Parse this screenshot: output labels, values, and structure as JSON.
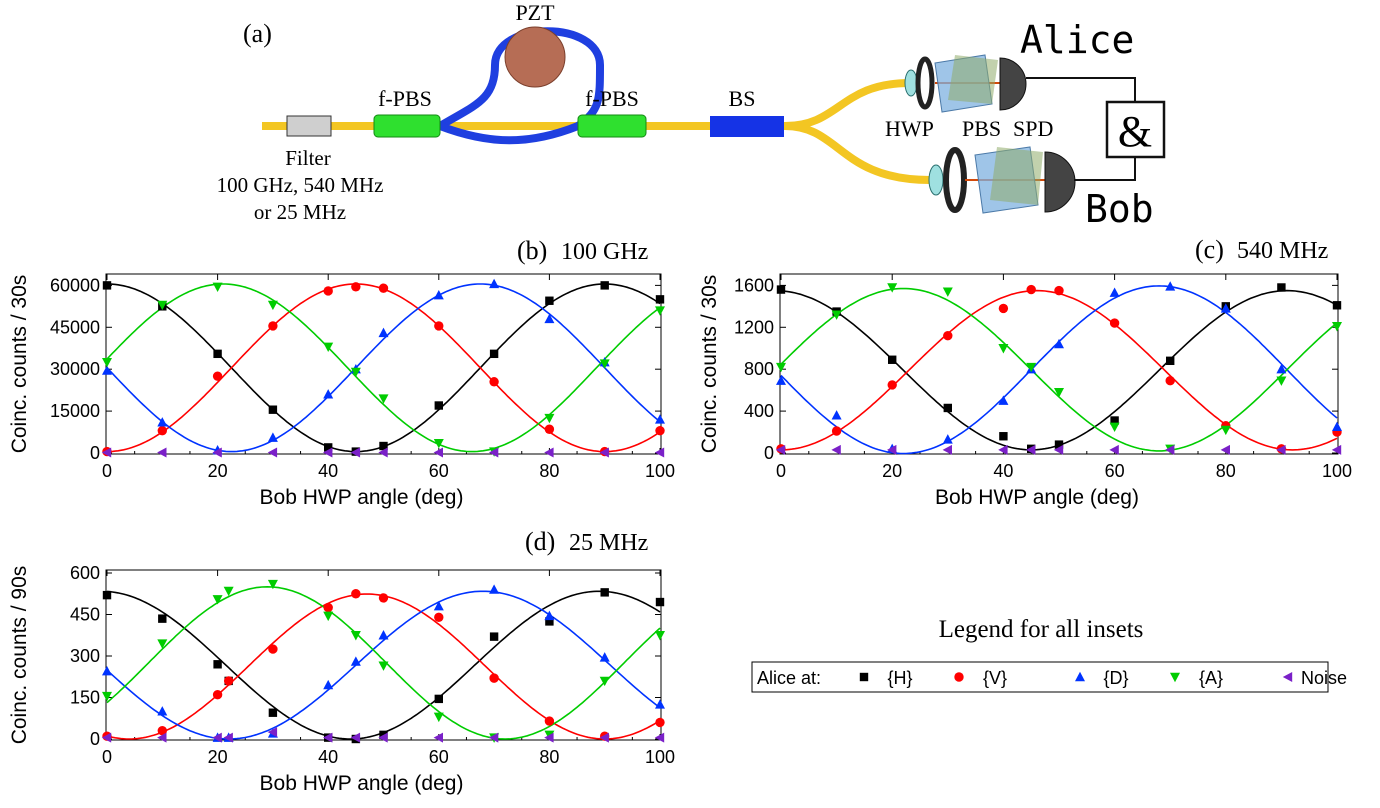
{
  "setup": {
    "panel_label": "(a)",
    "pzt_label": "PZT",
    "fpbs_left": "f-PBS",
    "fpbs_right": "f-PBS",
    "bs_label": "BS",
    "filter_label": "Filter",
    "filter_line1": "100 GHz, 540 MHz",
    "filter_line2": "or 25 MHz",
    "hwp_label": "HWP",
    "pbs_label": "PBS",
    "spd_label": "SPD",
    "alice": "Alice",
    "bob": "Bob",
    "coinc_symbol": "&",
    "colors": {
      "fiber": "#f3c623",
      "loop": "#1f3fe0",
      "green": "#2fe02f",
      "bs": "#1533e6",
      "filter": "#cfcfcf",
      "pzt": "#b66d55"
    }
  },
  "legend": {
    "heading": "Legend for all insets",
    "prefix": "Alice at:",
    "entries": [
      {
        "label": "{H}",
        "color": "#000000",
        "marker": "square"
      },
      {
        "label": "{V}",
        "color": "#ff0000",
        "marker": "circle"
      },
      {
        "label": "{D}",
        "color": "#0033ff",
        "marker": "triangle-up"
      },
      {
        "label": "{A}",
        "color": "#00cc00",
        "marker": "triangle-down"
      },
      {
        "label": "Noise",
        "color": "#7a20c8",
        "marker": "triangle-left"
      }
    ]
  },
  "chart_data": [
    {
      "type": "scatter",
      "panel": "(b)",
      "title": "100 GHz",
      "xlabel": "Bob HWP angle (deg)",
      "ylabel": "Coinc. counts / 30s",
      "xlim": [
        0,
        100
      ],
      "ylim": [
        0,
        63000
      ],
      "xticks": [
        0,
        20,
        40,
        60,
        80,
        100
      ],
      "yticks": [
        0,
        15000,
        30000,
        45000,
        60000
      ],
      "x": [
        0,
        10,
        20,
        30,
        40,
        45,
        50,
        60,
        70,
        80,
        90,
        100
      ],
      "fits": {
        "H": {
          "offset": 30500,
          "amp": 30000,
          "center": 0,
          "period": 90
        },
        "V": {
          "offset": 30500,
          "amp": 30000,
          "center": 45,
          "period": 90
        },
        "D": {
          "offset": 30500,
          "amp": 30000,
          "center": 67.5,
          "period": 90
        },
        "A": {
          "offset": 30500,
          "amp": 30000,
          "center": 21,
          "period": 90
        }
      },
      "series": [
        {
          "name": "{H}",
          "values": [
            60000,
            52500,
            35500,
            15500,
            2000,
            500,
            2500,
            17000,
            35500,
            54500,
            60000,
            55000
          ]
        },
        {
          "name": "{V}",
          "values": [
            500,
            8000,
            27500,
            45500,
            58000,
            59500,
            59000,
            45500,
            25500,
            8500,
            500,
            8000
          ]
        },
        {
          "name": "{D}",
          "values": [
            29500,
            11000,
            1000,
            5500,
            21000,
            30000,
            43000,
            56500,
            60500,
            48000,
            32500,
            12000
          ]
        },
        {
          "name": "{A}",
          "values": [
            32500,
            53000,
            59500,
            53000,
            38000,
            29000,
            19500,
            3500,
            500,
            12500,
            32000,
            51000
          ]
        },
        {
          "name": "Noise",
          "values": [
            200,
            200,
            200,
            200,
            200,
            200,
            200,
            200,
            200,
            200,
            200,
            200
          ]
        }
      ]
    },
    {
      "type": "scatter",
      "panel": "(c)",
      "title": "540 MHz",
      "xlabel": "Bob HWP angle (deg)",
      "ylabel": "Coinc. counts / 30s",
      "xlim": [
        0,
        100
      ],
      "ylim": [
        0,
        1680
      ],
      "xticks": [
        0,
        20,
        40,
        60,
        80,
        100
      ],
      "yticks": [
        0,
        400,
        800,
        1200,
        1600
      ],
      "x": [
        0,
        10,
        20,
        30,
        40,
        45,
        50,
        60,
        70,
        80,
        90,
        100
      ],
      "fits": {
        "H": {
          "offset": 790,
          "amp": 760,
          "center": -1,
          "period": 92
        },
        "V": {
          "offset": 790,
          "amp": 760,
          "center": 46,
          "period": 92
        },
        "D": {
          "offset": 795,
          "amp": 800,
          "center": 68,
          "period": 92
        },
        "A": {
          "offset": 795,
          "amp": 775,
          "center": 22,
          "period": 92
        }
      },
      "series": [
        {
          "name": "{H}",
          "values": [
            1560,
            1350,
            890,
            430,
            160,
            40,
            80,
            310,
            880,
            1400,
            1580,
            1410
          ]
        },
        {
          "name": "{V}",
          "values": [
            40,
            210,
            650,
            1120,
            1380,
            1560,
            1550,
            1240,
            690,
            260,
            40,
            200
          ]
        },
        {
          "name": "{D}",
          "values": [
            690,
            360,
            40,
            130,
            500,
            800,
            1040,
            1530,
            1590,
            1380,
            800,
            250
          ]
        },
        {
          "name": "{A}",
          "values": [
            820,
            1320,
            1580,
            1540,
            1000,
            820,
            580,
            250,
            40,
            220,
            690,
            1210
          ]
        },
        {
          "name": "Noise",
          "values": [
            30,
            30,
            30,
            30,
            30,
            30,
            30,
            30,
            30,
            30,
            30,
            30
          ]
        }
      ]
    },
    {
      "type": "scatter",
      "panel": "(d)",
      "title": "25 MHz",
      "xlabel": "Bob HWP angle (deg)",
      "ylabel": "Coinc. counts / 90s",
      "xlim": [
        0,
        100
      ],
      "ylim": [
        0,
        600
      ],
      "xticks": [
        0,
        20,
        40,
        60,
        80,
        100
      ],
      "yticks": [
        0,
        150,
        300,
        450,
        600
      ],
      "x": [
        0,
        10,
        20,
        22,
        30,
        40,
        45,
        50,
        60,
        70,
        80,
        90,
        100
      ],
      "fits": {
        "H": {
          "offset": 267,
          "amp": 267,
          "center": -1,
          "period": 90
        },
        "V": {
          "offset": 262,
          "amp": 262,
          "center": 47,
          "period": 86
        },
        "D": {
          "offset": 267,
          "amp": 267,
          "center": 68,
          "period": 92
        },
        "A": {
          "offset": 275,
          "amp": 275,
          "center": 29,
          "period": 86
        }
      },
      "series": [
        {
          "name": "{H}",
          "values": [
            520,
            435,
            270,
            210,
            95,
            5,
            0,
            15,
            145,
            370,
            425,
            530,
            495
          ]
        },
        {
          "name": "{V}",
          "values": [
            10,
            30,
            160,
            210,
            325,
            475,
            525,
            510,
            440,
            220,
            65,
            10,
            60
          ]
        },
        {
          "name": "{D}",
          "values": [
            245,
            100,
            5,
            5,
            20,
            195,
            280,
            375,
            480,
            540,
            445,
            295,
            125
          ]
        },
        {
          "name": "{A}",
          "values": [
            155,
            345,
            505,
            535,
            560,
            445,
            375,
            265,
            80,
            5,
            15,
            210,
            375
          ]
        },
        {
          "name": "Noise",
          "values": [
            5,
            5,
            5,
            5,
            25,
            5,
            5,
            5,
            5,
            5,
            5,
            5,
            5
          ]
        }
      ]
    }
  ]
}
